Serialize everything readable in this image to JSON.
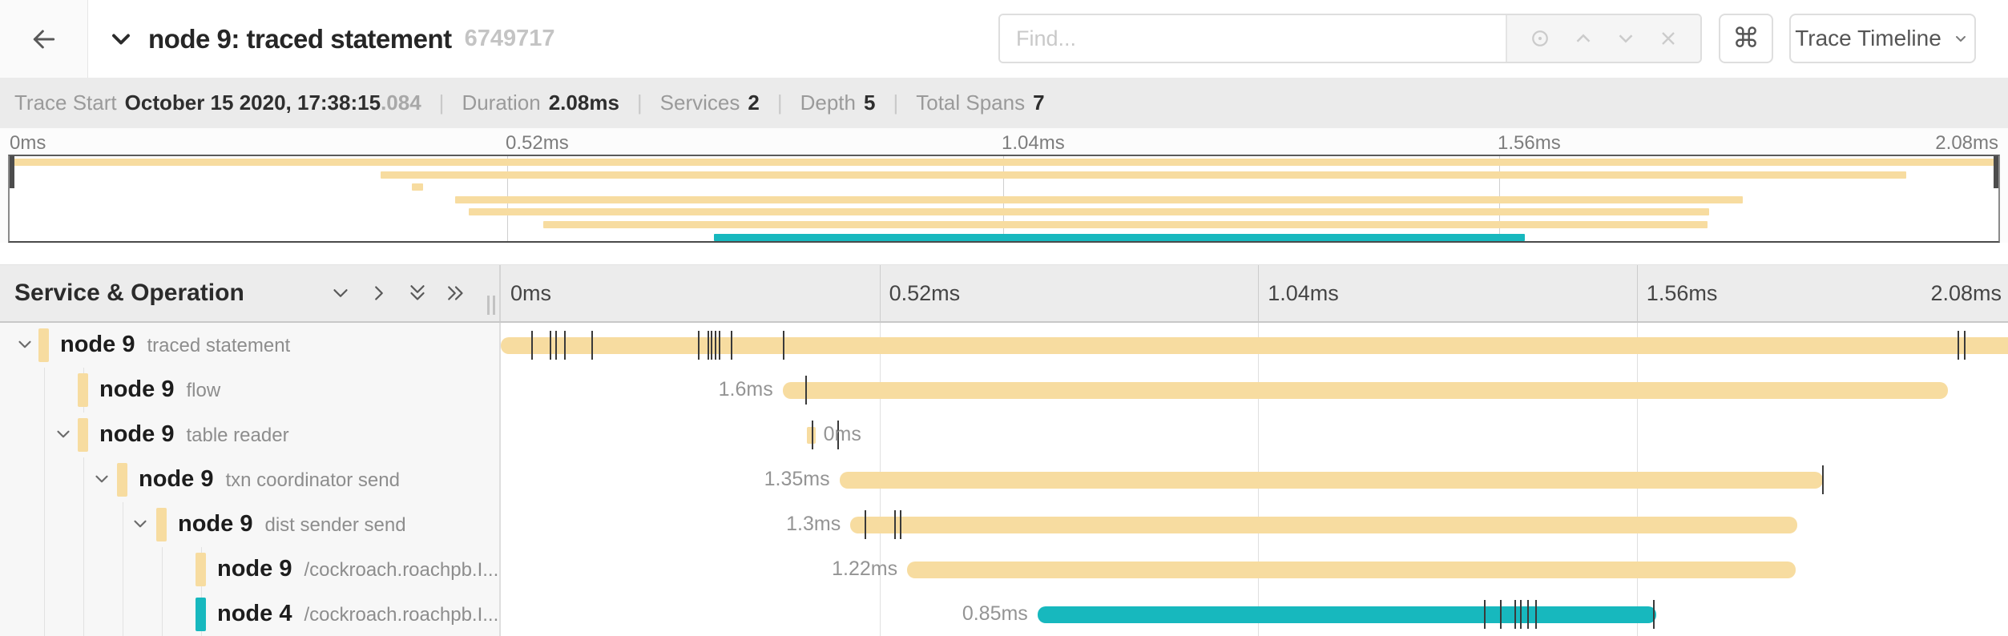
{
  "header": {
    "title": "node 9: traced statement",
    "trace_id": "6749717",
    "search": {
      "placeholder": "Find..."
    },
    "shortcut_key": "⌘",
    "view_selector_label": "Trace Timeline"
  },
  "summary": {
    "items": [
      {
        "label": "Trace Start",
        "value": "October 15 2020, 17:38:15",
        "suffix": ".084"
      },
      {
        "label": "Duration",
        "value": "2.08ms",
        "suffix": ""
      },
      {
        "label": "Services",
        "value": "2",
        "suffix": ""
      },
      {
        "label": "Depth",
        "value": "5",
        "suffix": ""
      },
      {
        "label": "Total Spans",
        "value": "7",
        "suffix": ""
      }
    ]
  },
  "timeline": {
    "duration_ms": 2.08,
    "axis_ticks": [
      "0ms",
      "0.52ms",
      "1.04ms",
      "1.56ms",
      "2.08ms"
    ],
    "left_header_title": "Service & Operation",
    "colors": {
      "tan": "#f7dca0",
      "teal": "#17b8be"
    }
  },
  "spans": [
    {
      "service": "node 9",
      "operation": "traced statement",
      "depth": 0,
      "color": "tan",
      "expandable": true,
      "start_ms": 0,
      "duration_ms": 2.08,
      "duration_label": "",
      "label_side": "none",
      "ticks_ms": [
        0.042,
        0.067,
        0.075,
        0.087,
        0.124,
        0.271,
        0.284,
        0.288,
        0.294,
        0.299,
        0.316,
        0.387,
        2.0,
        2.009
      ]
    },
    {
      "service": "node 9",
      "operation": "flow",
      "depth": 1,
      "color": "tan",
      "expandable": false,
      "start_ms": 0.387,
      "duration_ms": 1.6,
      "duration_label": "1.6ms",
      "label_side": "left",
      "ticks_ms": [
        0.418
      ]
    },
    {
      "service": "node 9",
      "operation": "table reader",
      "depth": 1,
      "color": "tan",
      "expandable": true,
      "start_ms": 0.42,
      "duration_ms": 0.012,
      "duration_label": "0ms",
      "label_side": "right",
      "ticks_ms": [
        0.427,
        0.462
      ]
    },
    {
      "service": "node 9",
      "operation": "txn coordinator send",
      "depth": 2,
      "color": "tan",
      "expandable": true,
      "start_ms": 0.465,
      "duration_ms": 1.35,
      "duration_label": "1.35ms",
      "label_side": "left",
      "ticks_ms": [
        1.814
      ]
    },
    {
      "service": "node 9",
      "operation": "dist sender send",
      "depth": 3,
      "color": "tan",
      "expandable": true,
      "start_ms": 0.48,
      "duration_ms": 1.3,
      "duration_label": "1.3ms",
      "label_side": "left",
      "ticks_ms": [
        0.499,
        0.54,
        0.548
      ]
    },
    {
      "service": "node 9",
      "operation": "/cockroach.roachpb.I...",
      "depth": 4,
      "color": "tan",
      "expandable": false,
      "start_ms": 0.558,
      "duration_ms": 1.22,
      "duration_label": "1.22ms",
      "label_side": "left",
      "ticks_ms": []
    },
    {
      "service": "node 4",
      "operation": "/cockroach.roachpb.I...",
      "depth": 4,
      "color": "teal",
      "expandable": false,
      "start_ms": 0.737,
      "duration_ms": 0.85,
      "duration_label": "0.85ms",
      "label_side": "left",
      "ticks_ms": [
        1.35,
        1.372,
        1.392,
        1.4,
        1.41,
        1.42,
        1.582
      ]
    }
  ]
}
